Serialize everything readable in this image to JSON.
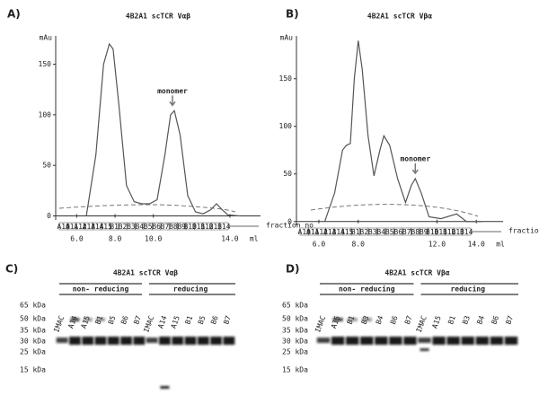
{
  "chart_data": [
    {
      "type": "line",
      "panel": "A)",
      "title": "4B2A1 scTCR Vαβ",
      "ylabel": "mAu",
      "xlabel": "ml",
      "color": "#555555",
      "x": [
        6.5,
        7.0,
        7.4,
        7.7,
        7.9,
        8.2,
        8.6,
        9.0,
        9.4,
        9.8,
        10.2,
        10.6,
        10.9,
        11.1,
        11.4,
        11.8,
        12.2,
        12.6,
        13.0,
        13.3,
        13.6,
        13.9,
        14.5
      ],
      "values": [
        0,
        60,
        150,
        170,
        165,
        110,
        30,
        14,
        12,
        12,
        16,
        60,
        100,
        104,
        80,
        20,
        4,
        2,
        6,
        12,
        6,
        1,
        0
      ],
      "annotation": "monomer",
      "annotation_x": 11.0,
      "xlim": [
        4.9,
        15.6
      ],
      "ylim": [
        -4,
        178
      ],
      "xticks": [
        {
          "value": 6,
          "label": "6.0"
        },
        {
          "value": 8,
          "label": "8.0"
        },
        {
          "value": 10,
          "label": "10.0"
        },
        {
          "value": 14,
          "label": "14.0"
        }
      ],
      "yticks": [
        0,
        50,
        100,
        150
      ],
      "fractions": [
        "A10",
        "A11",
        "A12",
        "A13",
        "A14",
        "A15",
        "B1",
        "B2",
        "B3",
        "B4",
        "B5",
        "B6",
        "B7",
        "B8",
        "B9",
        "B10",
        "B11",
        "B12",
        "B13",
        "B14"
      ],
      "fraction_label": "fraction no"
    },
    {
      "type": "line",
      "panel": "B)",
      "title": "4B2A1 scTCR Vβα",
      "ylabel": "mAu",
      "xlabel": "ml",
      "color": "#555555",
      "x": [
        6.3,
        6.8,
        7.2,
        7.4,
        7.6,
        7.8,
        8.0,
        8.2,
        8.5,
        8.8,
        9.1,
        9.3,
        9.6,
        10.0,
        10.4,
        10.7,
        10.9,
        11.2,
        11.6,
        12.2,
        13.0,
        13.5,
        14.3
      ],
      "values": [
        0,
        30,
        75,
        80,
        82,
        150,
        190,
        160,
        90,
        48,
        75,
        90,
        80,
        45,
        20,
        38,
        45,
        30,
        5,
        3,
        8,
        0,
        0
      ],
      "annotation": "monomer",
      "annotation_x": 10.9,
      "xlim": [
        4.86,
        15.36
      ],
      "ylim": [
        -4,
        195
      ],
      "xticks": [
        {
          "value": 6,
          "label": "6.0"
        },
        {
          "value": 8,
          "label": "8.0"
        },
        {
          "value": 12,
          "label": "12.0"
        },
        {
          "value": 14,
          "label": "14.0"
        }
      ],
      "yticks": [
        0,
        50,
        100,
        150
      ],
      "fractions": [
        "A10",
        "A11",
        "A12",
        "A13",
        "A14",
        "A15",
        "B1",
        "B2",
        "B3",
        "B4",
        "B5",
        "B6",
        "B7",
        "B8",
        "B9",
        "B10",
        "B11",
        "B12",
        "B13",
        "B14"
      ],
      "fraction_label": "fraction no"
    }
  ],
  "gels": [
    {
      "panel": "C)",
      "title": "4B2A1 scTCR Vαβ",
      "groups": [
        "non- reducing",
        "reducing"
      ],
      "lanes": [
        "IMAC",
        "A14",
        "A15",
        "B1",
        "B5",
        "B6",
        "B7",
        "IMAC",
        "A14",
        "A15",
        "B1",
        "B5",
        "B6",
        "B7"
      ],
      "markers": [
        "65 kDa",
        "50 kDa",
        "35 kDa",
        "30 kDa",
        "25 kDa",
        "15 kDa"
      ]
    },
    {
      "panel": "D)",
      "title": "4B2A1 scTCR Vβα",
      "groups": [
        "non- reducing",
        "reducing"
      ],
      "lanes": [
        "IMAC",
        "A15",
        "B1",
        "B3",
        "B4",
        "B6",
        "B7",
        "IMAC",
        "A15",
        "B1",
        "B3",
        "B4",
        "B6",
        "B7"
      ],
      "markers": [
        "65 kDa",
        "50 kDa",
        "35 kDa",
        "30 kDa",
        "25 kDa",
        "15 kDa"
      ]
    }
  ]
}
